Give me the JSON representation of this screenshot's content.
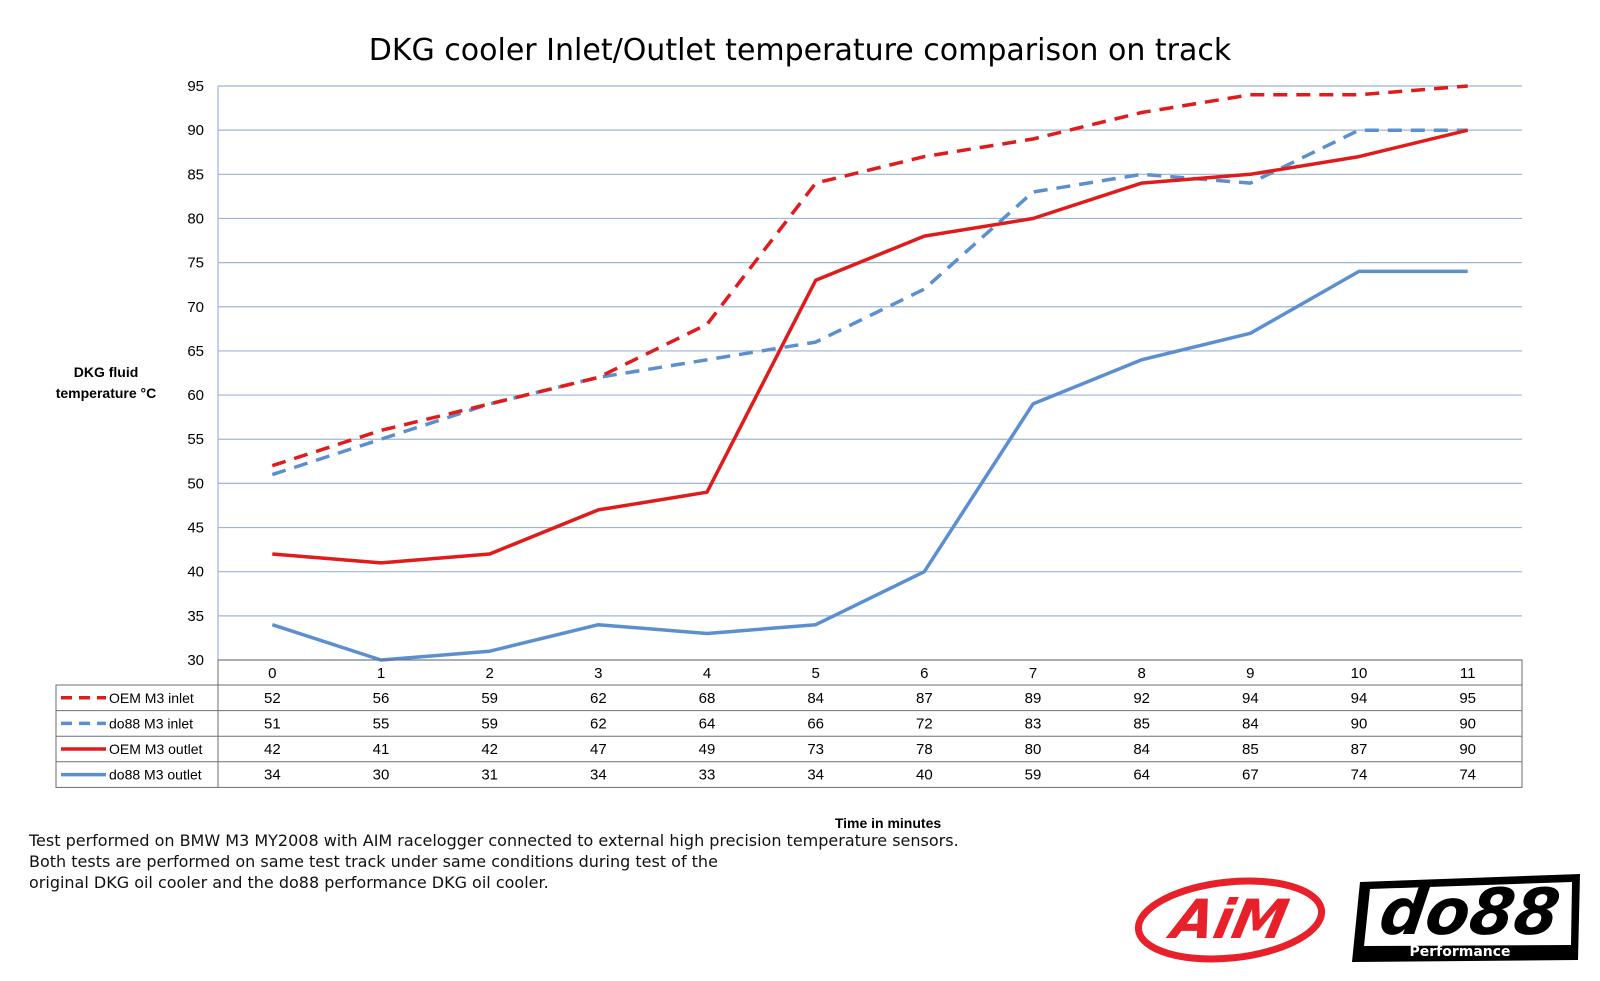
{
  "chart_data": {
    "type": "line",
    "title": "DKG cooler Inlet/Outlet temperature comparison on track",
    "ylabel": [
      "DKG fluid",
      "temperature °C"
    ],
    "xlabel": "Time in minutes",
    "x": [
      0,
      1,
      2,
      3,
      4,
      5,
      6,
      7,
      8,
      9,
      10,
      11
    ],
    "ylim": [
      30,
      95
    ],
    "yticks": [
      30,
      35,
      40,
      45,
      50,
      55,
      60,
      65,
      70,
      75,
      80,
      85,
      90,
      95
    ],
    "grid": true,
    "legend": "data-table",
    "series": [
      {
        "name": "OEM M3 inlet",
        "color": "#e01b1b",
        "dash": true,
        "values": [
          52,
          56,
          59,
          62,
          68,
          84,
          87,
          89,
          92,
          94,
          94,
          95
        ]
      },
      {
        "name": "do88 M3 inlet",
        "color": "#5b8fd0",
        "dash": true,
        "values": [
          51,
          55,
          59,
          62,
          64,
          66,
          72,
          83,
          85,
          84,
          90,
          90
        ]
      },
      {
        "name": "OEM M3 outlet",
        "color": "#e01b1b",
        "dash": false,
        "values": [
          42,
          41,
          42,
          47,
          49,
          73,
          78,
          80,
          84,
          85,
          87,
          90
        ]
      },
      {
        "name": "do88 M3 outlet",
        "color": "#5b8fd0",
        "dash": false,
        "values": [
          34,
          30,
          31,
          34,
          33,
          34,
          40,
          59,
          64,
          67,
          74,
          74
        ]
      }
    ]
  },
  "footnote": [
    "Test performed on BMW M3 MY2008 with AIM racelogger connected to external high precision temperature sensors.",
    "Both tests are performed on same test track under same conditions during test of the",
    "original DKG oil cooler and the do88 performance DKG oil cooler."
  ],
  "logos": {
    "aim": {
      "text": "AiM",
      "color": "#e8202a"
    },
    "do88": {
      "text": "do88",
      "subtext": "Performance",
      "color": "#000000"
    }
  }
}
